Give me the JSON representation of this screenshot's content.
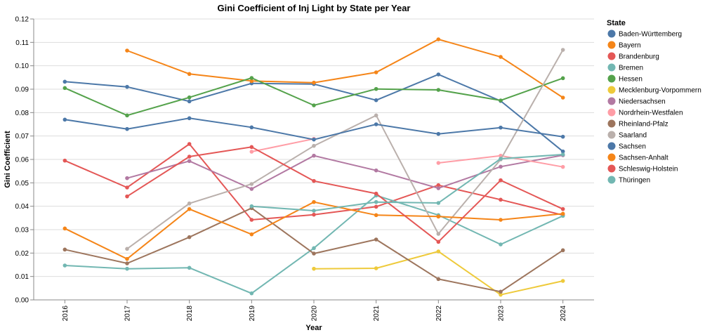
{
  "chart_data": {
    "type": "line",
    "title": "Gini Coefficient of Inj Light by State per Year",
    "xlabel": "Year",
    "ylabel": "Gini Coefficient",
    "x": [
      "2016",
      "2017",
      "2018",
      "2019",
      "2020",
      "2021",
      "2022",
      "2023",
      "2024"
    ],
    "ylim": [
      0,
      0.12
    ],
    "yticks": [
      "0.00",
      "0.01",
      "0.02",
      "0.03",
      "0.04",
      "0.05",
      "0.06",
      "0.07",
      "0.08",
      "0.09",
      "0.10",
      "0.11",
      "0.12"
    ],
    "grid": true,
    "legend": {
      "title": "State",
      "position": "right"
    },
    "series": [
      {
        "name": "Baden-Württemberg",
        "color": "#4c78a8",
        "values": [
          0.0932,
          0.091,
          0.0848,
          0.0925,
          0.0922,
          0.0853,
          0.0963,
          0.085,
          0.0634
        ]
      },
      {
        "name": "Bayern",
        "color": "#f58518",
        "values": [
          null,
          0.1065,
          0.0965,
          0.0935,
          0.0928,
          0.0972,
          0.1113,
          0.1038,
          0.0864
        ]
      },
      {
        "name": "Brandenburg",
        "color": "#e45756",
        "values": [
          0.0595,
          0.048,
          0.0666,
          0.0342,
          0.0364,
          0.0398,
          0.049,
          0.0428,
          0.0362
        ]
      },
      {
        "name": "Bremen",
        "color": "#72b7b2",
        "values": [
          0.0147,
          0.0133,
          0.0137,
          0.0028,
          0.0221,
          0.0446,
          0.0362,
          0.0237,
          0.0359
        ]
      },
      {
        "name": "Hessen",
        "color": "#54a24b",
        "values": [
          0.0905,
          0.0788,
          0.0865,
          0.0948,
          0.0831,
          0.0901,
          0.0897,
          0.0852,
          0.0947
        ]
      },
      {
        "name": "Mecklenburg-Vorpommern",
        "color": "#eeca3b",
        "values": [
          null,
          null,
          null,
          null,
          0.0133,
          0.0135,
          0.0207,
          0.0022,
          0.0081
        ]
      },
      {
        "name": "Niedersachsen",
        "color": "#b279a2",
        "values": [
          null,
          0.052,
          0.0593,
          0.0474,
          0.0616,
          0.0553,
          0.0477,
          0.0569,
          0.0618
        ]
      },
      {
        "name": "Nordrhein-Westfalen",
        "color": "#ff9da6",
        "values": [
          null,
          null,
          null,
          0.0633,
          0.0688,
          null,
          0.0585,
          0.0616,
          0.0568
        ]
      },
      {
        "name": "Rheinland-Pfalz",
        "color": "#9d755d",
        "values": [
          0.0215,
          0.0156,
          0.0268,
          0.0392,
          0.0198,
          0.0258,
          0.0089,
          0.0035,
          0.0212
        ]
      },
      {
        "name": "Saarland",
        "color": "#bab0ac",
        "values": [
          null,
          0.0218,
          0.0412,
          0.0495,
          0.0658,
          0.0788,
          0.0282,
          0.06,
          0.1068
        ]
      },
      {
        "name": "Sachsen",
        "color": "#4c78a8",
        "values": [
          0.077,
          0.073,
          0.0776,
          0.0737,
          0.0685,
          0.075,
          0.0709,
          0.0736,
          0.0697
        ]
      },
      {
        "name": "Sachsen-Anhalt",
        "color": "#f58518",
        "values": [
          0.0305,
          0.0175,
          0.0388,
          0.028,
          0.0418,
          0.0362,
          0.0356,
          0.0342,
          0.0368
        ]
      },
      {
        "name": "Schleswig-Holstein",
        "color": "#e45756",
        "values": [
          null,
          0.0442,
          0.0612,
          0.0653,
          0.0508,
          0.0454,
          0.0248,
          0.0511,
          0.0388
        ]
      },
      {
        "name": "Thüringen",
        "color": "#72b7b2",
        "values": [
          null,
          null,
          null,
          0.04,
          0.0381,
          0.0418,
          0.0414,
          0.0603,
          0.0621
        ]
      }
    ]
  }
}
